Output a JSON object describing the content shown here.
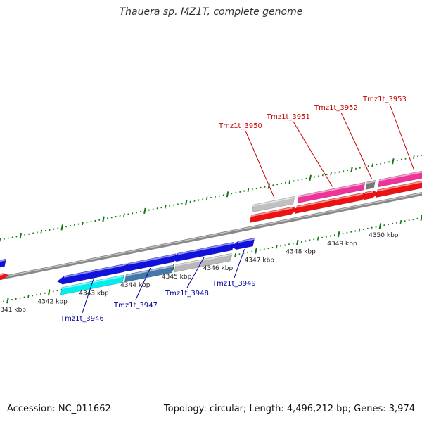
{
  "title": "Thauera sp. MZ1T, complete genome",
  "footer": {
    "accession": "Accession: NC_011662",
    "summary": "Topology: circular; Length: 4,496,212 bp; Genes: 3,974"
  },
  "colors": {
    "forward_label": "#cc0000",
    "reverse_label": "#000099",
    "backbone": "#888888",
    "ticks": "#117711"
  },
  "kbp_labels": [
    {
      "text": "4341 kbp",
      "kb": 4341
    },
    {
      "text": "4342 kbp",
      "kb": 4342
    },
    {
      "text": "4343 kbp",
      "kb": 4343
    },
    {
      "text": "4344 kbp",
      "kb": 4344
    },
    {
      "text": "4345 kbp",
      "kb": 4345
    },
    {
      "text": "4346 kbp",
      "kb": 4346
    },
    {
      "text": "4347 kbp",
      "kb": 4347
    },
    {
      "text": "4348 kbp",
      "kb": 4348
    },
    {
      "text": "4349 kbp",
      "kb": 4349
    },
    {
      "text": "4350 kbp",
      "kb": 4350
    }
  ],
  "forward_genes": [
    {
      "name": "Tmz1t_3950",
      "start": 4346.7,
      "end": 4347.7,
      "color": "#c0c0c0",
      "cds": "#ee1111"
    },
    {
      "name": "Tmz1t_3951",
      "start": 4347.8,
      "end": 4349.4,
      "color": "#ee3399",
      "cds": "#ee1111"
    },
    {
      "name": "Tmz1t_3952",
      "start": 4349.45,
      "end": 4349.65,
      "color": "#777777",
      "cds": "#ee1111"
    },
    {
      "name": "Tmz1t_3953",
      "start": 4349.75,
      "end": 4351.4,
      "color": "#ee3399",
      "cds": "#ee1111"
    }
  ],
  "reverse_genes": [
    {
      "name": "Tmz1t_3946",
      "start": 4342.3,
      "end": 4343.8,
      "color": "#00eeee",
      "cds": "#1111dd"
    },
    {
      "name": "Tmz1t_3947",
      "start": 4343.85,
      "end": 4345.0,
      "color": "#4477aa",
      "cds": "#1111dd"
    },
    {
      "name": "Tmz1t_3948",
      "start": 4345.05,
      "end": 4346.4,
      "color": "#b8b8b8",
      "cds": "#1111dd"
    },
    {
      "name": "Tmz1t_3949",
      "start": 4346.5,
      "end": 4346.9,
      "color": null,
      "cds": "#1111dd"
    }
  ]
}
